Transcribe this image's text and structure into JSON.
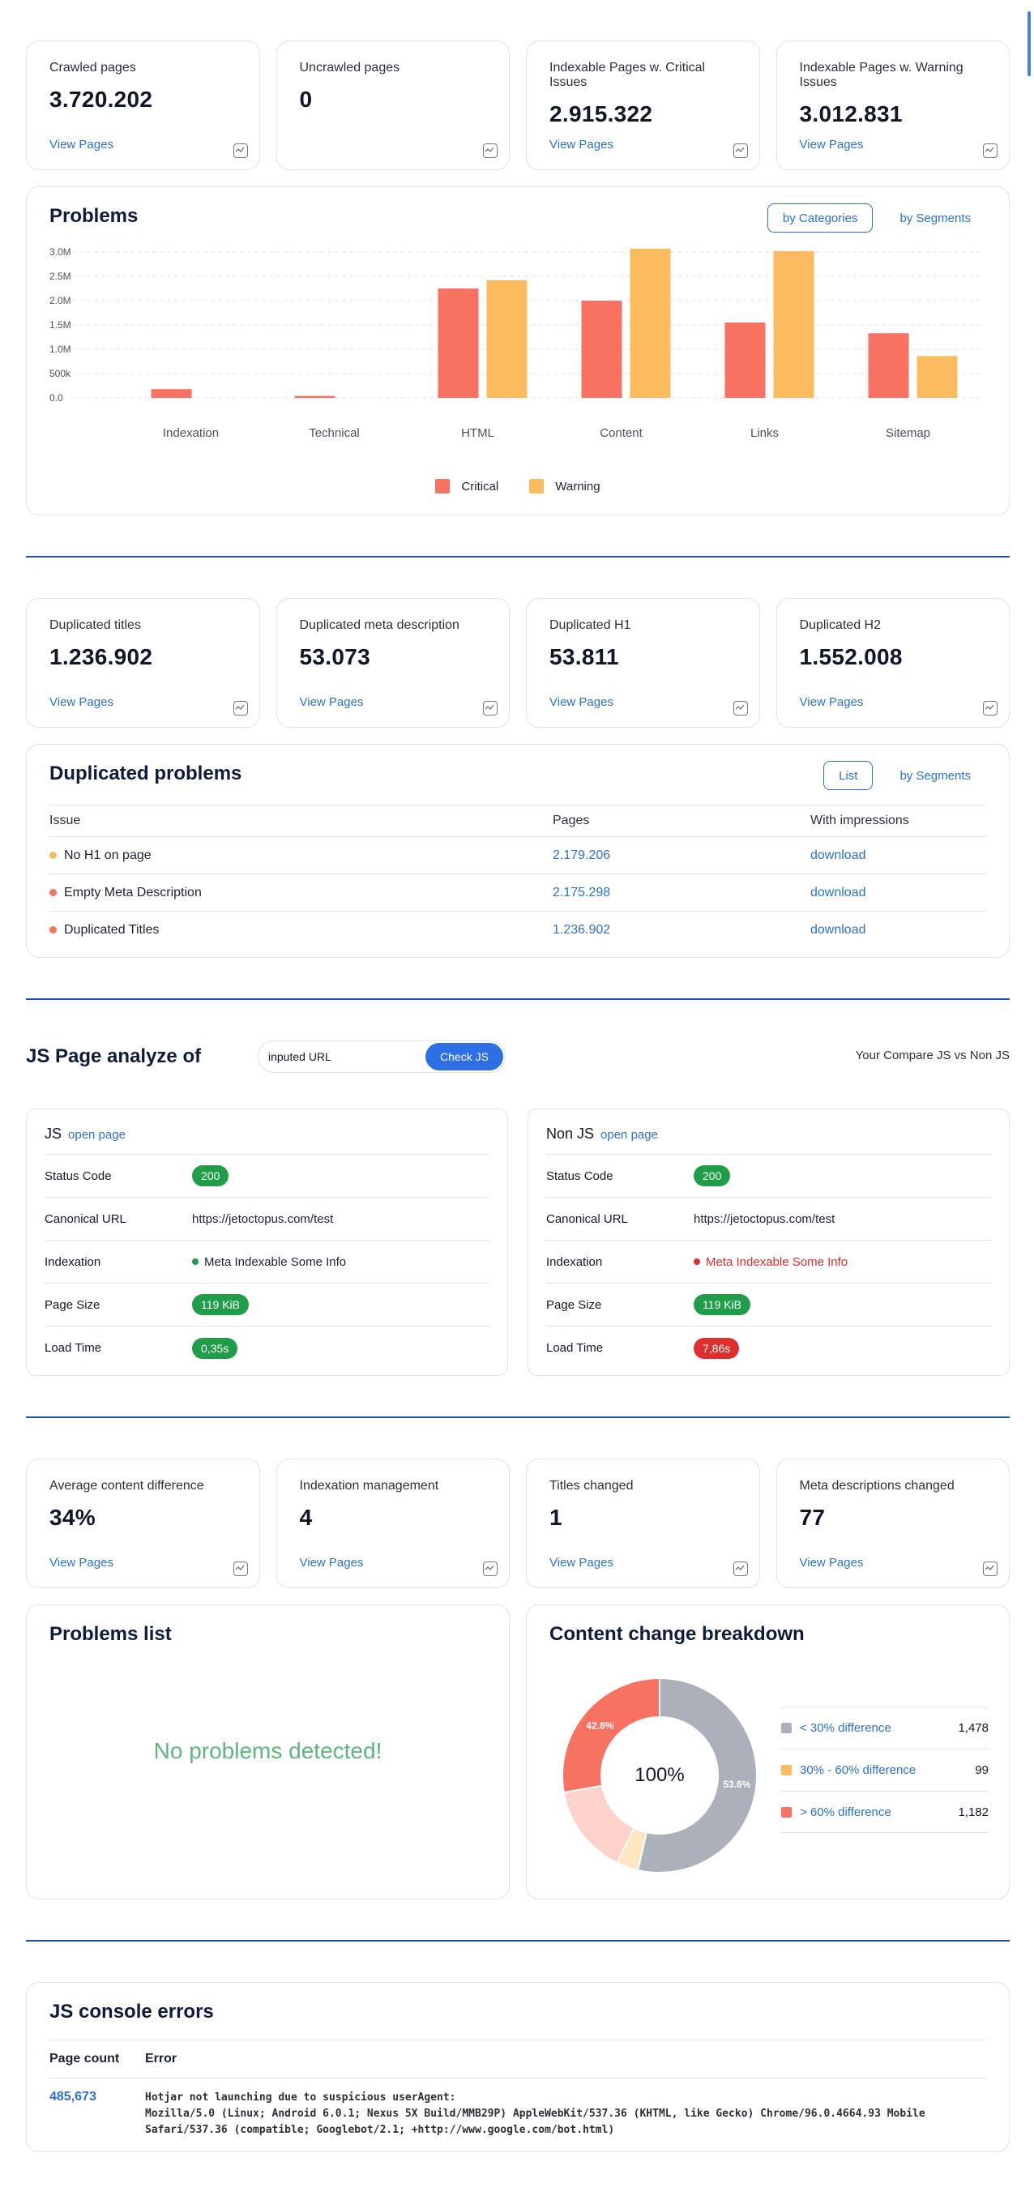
{
  "top_stats": [
    {
      "title": "Crawled pages",
      "value": "3.720.202",
      "link": "View Pages"
    },
    {
      "title": "Uncrawled pages",
      "value": "0",
      "link": ""
    },
    {
      "title": "Indexable Pages w. Critical Issues",
      "value": "2.915.322",
      "link": "View Pages"
    },
    {
      "title": "Indexable Pages w. Warning Issues",
      "value": "3.012.831",
      "link": "View Pages"
    }
  ],
  "problems": {
    "title": "Problems",
    "toggle": [
      "by Categories",
      "by Segments"
    ],
    "active_toggle": "by Categories"
  },
  "chart_data": {
    "type": "bar",
    "categories": [
      "Indexation",
      "Technical",
      "HTML",
      "Content",
      "Links",
      "Sitemap"
    ],
    "series": [
      {
        "name": "Critical",
        "color": "#f87262",
        "values": [
          180000,
          40000,
          2250000,
          2000000,
          1550000,
          1330000
        ]
      },
      {
        "name": "Warning",
        "color": "#fdbb5f",
        "values": [
          0,
          0,
          2420000,
          3070000,
          3020000,
          860000
        ]
      }
    ],
    "yticks": [
      "0.0",
      "500k",
      "1.0M",
      "1.5M",
      "2.0M",
      "2.5M",
      "3.0M"
    ],
    "ylim": [
      0,
      3000000
    ],
    "grid": true,
    "legend_position": "bottom"
  },
  "dup_stats": [
    {
      "title": "Duplicated titles",
      "value": "1.236.902",
      "link": "View Pages"
    },
    {
      "title": "Duplicated meta description",
      "value": "53.073",
      "link": "View Pages"
    },
    {
      "title": "Duplicated H1",
      "value": "53.811",
      "link": "View Pages"
    },
    {
      "title": "Duplicated H2",
      "value": "1.552.008",
      "link": "View Pages"
    }
  ],
  "dup_problems": {
    "title": "Duplicated problems",
    "toggle": [
      "List",
      "by Segments"
    ],
    "columns": [
      "Issue",
      "Pages",
      "With impressions"
    ],
    "rows": [
      {
        "issue": "No H1 on page",
        "dot_color": "#fdbb5f",
        "pages": "2.179.206",
        "impressions": "download"
      },
      {
        "issue": "Empty Meta Description",
        "dot_color": "#f87262",
        "pages": "2.175.298",
        "impressions": "download"
      },
      {
        "issue": "Duplicated Titles",
        "dot_color": "#f87262",
        "pages": "1.236.902",
        "impressions": "download"
      }
    ]
  },
  "js_analyze": {
    "title": "JS Page analyze of",
    "input_value": "inputed URL",
    "button": "Check JS",
    "compare_note": "Your Compare JS vs Non JS",
    "panels": [
      {
        "name": "JS",
        "open": "open page",
        "rows": [
          {
            "label": "Status Code",
            "value": "200",
            "kind": "pill-green"
          },
          {
            "label": "Canonical URL",
            "value": "https://jetoctopus.com/test",
            "kind": "text"
          },
          {
            "label": "Indexation",
            "value": "Meta Indexable Some Info",
            "kind": "dot-green"
          },
          {
            "label": "Page Size",
            "value": "119 KiB",
            "kind": "pill-green"
          },
          {
            "label": "Load Time",
            "value": "0,35s",
            "kind": "pill-green"
          }
        ]
      },
      {
        "name": "Non JS",
        "open": "open page",
        "rows": [
          {
            "label": "Status Code",
            "value": "200",
            "kind": "pill-green"
          },
          {
            "label": "Canonical URL",
            "value": "https://jetoctopus.com/test",
            "kind": "text"
          },
          {
            "label": "Indexation",
            "value": "Meta Indexable Some Info",
            "kind": "dot-red"
          },
          {
            "label": "Page Size",
            "value": "119 KiB",
            "kind": "pill-green"
          },
          {
            "label": "Load Time",
            "value": "7,86s",
            "kind": "pill-red"
          }
        ]
      }
    ]
  },
  "diff_stats": [
    {
      "title": "Average content difference",
      "value": "34%",
      "link": "View Pages"
    },
    {
      "title": "Indexation management",
      "value": "4",
      "link": "View Pages"
    },
    {
      "title": "Titles changed",
      "value": "1",
      "link": "View Pages"
    },
    {
      "title": "Meta descriptions changed",
      "value": "77",
      "link": "View Pages"
    }
  ],
  "problems_list": {
    "title": "Problems list",
    "empty": "No problems detected!"
  },
  "breakdown": {
    "title": "Content change breakdown",
    "center": "100%",
    "slices": [
      {
        "label": "< 30% difference",
        "value": "1,478",
        "pct": 53.6,
        "pct_label": "53.6%",
        "color": "#abb0bb"
      },
      {
        "label": "30% - 60% difference",
        "value": "99",
        "pct": 3.6,
        "pct_label": "",
        "color": "#fde6c0"
      },
      {
        "label": "",
        "value": "",
        "pct": 15.0,
        "pct_label": "",
        "color": "#fdd2ca"
      },
      {
        "label": "> 60% difference",
        "value": "1,182",
        "pct": 27.8,
        "pct_label": "42.8%",
        "color": "#f87262"
      }
    ],
    "legend_colors": [
      "#abb0bb",
      "#fdbb5f",
      "#f87262"
    ]
  },
  "console": {
    "title": "JS console errors",
    "columns": [
      "Page count",
      "Error"
    ],
    "rows": [
      {
        "count": "485,673",
        "error": "Hotjar not launching due to suspicious userAgent:\nMozilla/5.0 (Linux; Android 6.0.1; Nexus 5X Build/MMB29P) AppleWebKit/537.36 (KHTML, like Gecko) Chrome/96.0.4664.93 Mobile\nSafari/537.36 (compatible; Googlebot/2.1; +http://www.google.com/bot.html)"
      }
    ]
  }
}
